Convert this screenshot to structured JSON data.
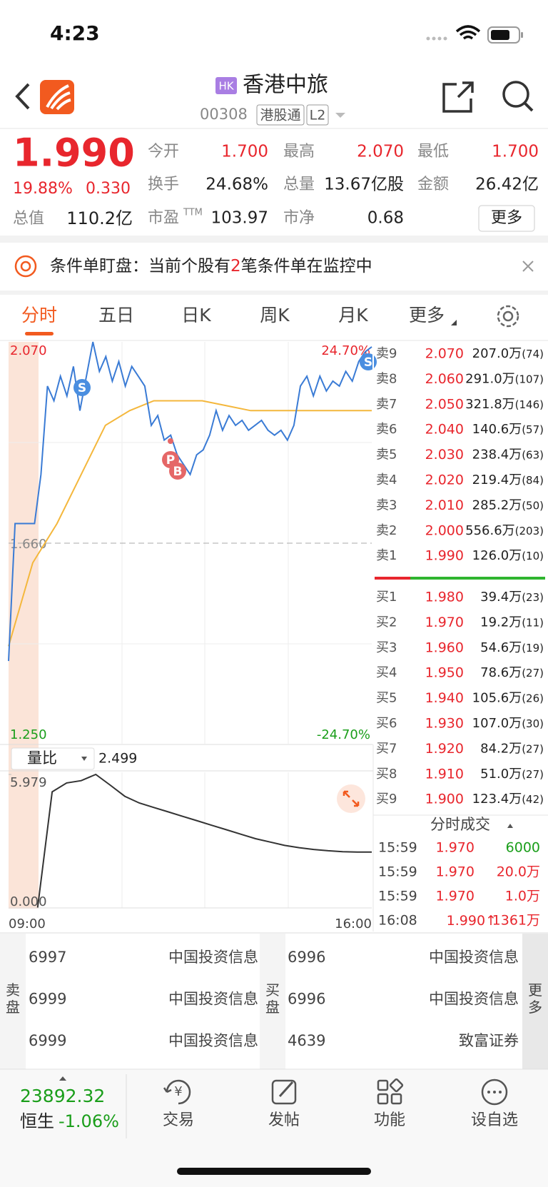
{
  "status_bar": {
    "time": "4:23"
  },
  "header": {
    "market_badge": "HK",
    "title": "香港中旅",
    "code": "00308",
    "tags": [
      "港股通",
      "L2"
    ]
  },
  "quote": {
    "price": "1.990",
    "change_pct": "19.88%",
    "change": "0.330",
    "market_cap_label": "总值",
    "market_cap": "110.2亿",
    "stats": [
      {
        "label": "今开",
        "value": "1.700"
      },
      {
        "label": "最高",
        "value": "2.070"
      },
      {
        "label": "最低",
        "value": "1.700"
      },
      {
        "label": "换手",
        "value": "24.68%"
      },
      {
        "label": "总量",
        "value": "13.67亿股"
      },
      {
        "label": "金额",
        "value": "26.42亿"
      },
      {
        "label": "市盈",
        "superscript": "TTM",
        "value": "103.97"
      },
      {
        "label": "市净",
        "value": "0.68"
      }
    ],
    "more": "更多"
  },
  "banner": {
    "prefix": "条件单盯盘：当前个股有",
    "count": "2",
    "suffix": "笔条件单在监控中"
  },
  "tabs": [
    "分时",
    "五日",
    "日K",
    "周K",
    "月K",
    "更多"
  ],
  "intraday": {
    "ylim": [
      1.25,
      2.07
    ],
    "yticks": [
      {
        "value": 2.07,
        "label": "2.070"
      },
      {
        "value": 1.66,
        "label": "1.660"
      },
      {
        "value": 1.25,
        "label": "1.250"
      }
    ],
    "pct_labels": [
      "24.70%",
      "-24.70%"
    ],
    "values": [
      1.42,
      1.7,
      1.7,
      1.7,
      1.7,
      1.8,
      1.98,
      1.95,
      2.0,
      1.96,
      2.02,
      1.93,
      2.0,
      2.07,
      2.01,
      2.04,
      1.99,
      2.03,
      1.98,
      2.02,
      2.0,
      1.98,
      1.9,
      1.92,
      1.87,
      1.88,
      1.84,
      1.82,
      1.8,
      1.84,
      1.85,
      1.88,
      1.93,
      1.89,
      1.92,
      1.9,
      1.91,
      1.89,
      1.9,
      1.91,
      1.89,
      1.88,
      1.89,
      1.87,
      1.9,
      1.98,
      2.0,
      1.96,
      2.0,
      1.97,
      1.99,
      1.98,
      2.01,
      1.99,
      2.03,
      2.05,
      2.06
    ],
    "avg_values": [
      1.45,
      1.62,
      1.7,
      1.8,
      1.9,
      1.93,
      1.95,
      1.95,
      1.95,
      1.94,
      1.93,
      1.93,
      1.93,
      1.93,
      1.93,
      1.93
    ],
    "markers": [
      "S",
      "P",
      "B",
      "S"
    ],
    "indicator": "量比",
    "indicator_value": "2.499",
    "volume_ratio": {
      "ylim": [
        0,
        5.979
      ],
      "yticks": [
        {
          "value": 5.979,
          "label": "5.979"
        },
        {
          "value": 0,
          "label": "0.000"
        }
      ],
      "values": [
        null,
        null,
        0,
        5.2,
        5.6,
        5.7,
        5.979,
        5.5,
        5.0,
        4.7,
        4.5,
        4.3,
        4.1,
        3.9,
        3.7,
        3.5,
        3.3,
        3.1,
        2.95,
        2.8,
        2.7,
        2.62,
        2.56,
        2.52,
        2.5,
        2.499
      ]
    },
    "time_labels": [
      "09:00",
      "16:00"
    ]
  },
  "order_book": {
    "asks": [
      {
        "label": "卖9",
        "price": "2.070",
        "volume": "207.0万",
        "orders": "(74)"
      },
      {
        "label": "卖8",
        "price": "2.060",
        "volume": "291.0万",
        "orders": "(107)"
      },
      {
        "label": "卖7",
        "price": "2.050",
        "volume": "321.8万",
        "orders": "(146)"
      },
      {
        "label": "卖6",
        "price": "2.040",
        "volume": "140.6万",
        "orders": "(57)"
      },
      {
        "label": "卖5",
        "price": "2.030",
        "volume": "238.4万",
        "orders": "(63)"
      },
      {
        "label": "卖4",
        "price": "2.020",
        "volume": "219.4万",
        "orders": "(84)"
      },
      {
        "label": "卖3",
        "price": "2.010",
        "volume": "285.2万",
        "orders": "(50)"
      },
      {
        "label": "卖2",
        "price": "2.000",
        "volume": "556.6万",
        "orders": "(203)"
      },
      {
        "label": "卖1",
        "price": "1.990",
        "volume": "126.0万",
        "orders": "(10)"
      }
    ],
    "bids": [
      {
        "label": "买1",
        "price": "1.980",
        "volume": "39.4万",
        "orders": "(23)"
      },
      {
        "label": "买2",
        "price": "1.970",
        "volume": "19.2万",
        "orders": "(11)"
      },
      {
        "label": "买3",
        "price": "1.960",
        "volume": "54.6万",
        "orders": "(19)"
      },
      {
        "label": "买4",
        "price": "1.950",
        "volume": "78.6万",
        "orders": "(27)"
      },
      {
        "label": "买5",
        "price": "1.940",
        "volume": "105.6万",
        "orders": "(26)"
      },
      {
        "label": "买6",
        "price": "1.930",
        "volume": "107.0万",
        "orders": "(30)"
      },
      {
        "label": "买7",
        "price": "1.920",
        "volume": "84.2万",
        "orders": "(27)"
      },
      {
        "label": "买8",
        "price": "1.910",
        "volume": "51.0万",
        "orders": "(27)"
      },
      {
        "label": "买9",
        "price": "1.900",
        "volume": "123.4万",
        "orders": "(42)"
      }
    ]
  },
  "trades": {
    "title": "分时成交",
    "rows": [
      {
        "time": "15:59",
        "price": "1.970",
        "volume": "6000",
        "color": "#1a9e1a"
      },
      {
        "time": "15:59",
        "price": "1.970",
        "volume": "20.0万",
        "color": "#e8262d"
      },
      {
        "time": "15:59",
        "price": "1.970",
        "volume": "1.0万",
        "color": "#e8262d"
      },
      {
        "time": "16:08",
        "price": "1.990",
        "direction": "↑",
        "volume": "1361万",
        "color": "#e8262d"
      }
    ]
  },
  "broker_queue": {
    "sell_label": "卖盘",
    "buy_label": "买盘",
    "more": "更多",
    "sell": [
      {
        "id": "6997",
        "name": "中国投资信息"
      },
      {
        "id": "6999",
        "name": "中国投资信息"
      },
      {
        "id": "6999",
        "name": "中国投资信息"
      }
    ],
    "buy": [
      {
        "id": "6996",
        "name": "中国投资信息"
      },
      {
        "id": "6996",
        "name": "中国投资信息"
      },
      {
        "id": "4639",
        "name": "致富证券"
      }
    ]
  },
  "bottom_bar": {
    "index_value": "23892.32",
    "index_name": "恒生",
    "index_change": "-1.06%",
    "items": [
      "交易",
      "发帖",
      "功能",
      "设自选"
    ]
  }
}
